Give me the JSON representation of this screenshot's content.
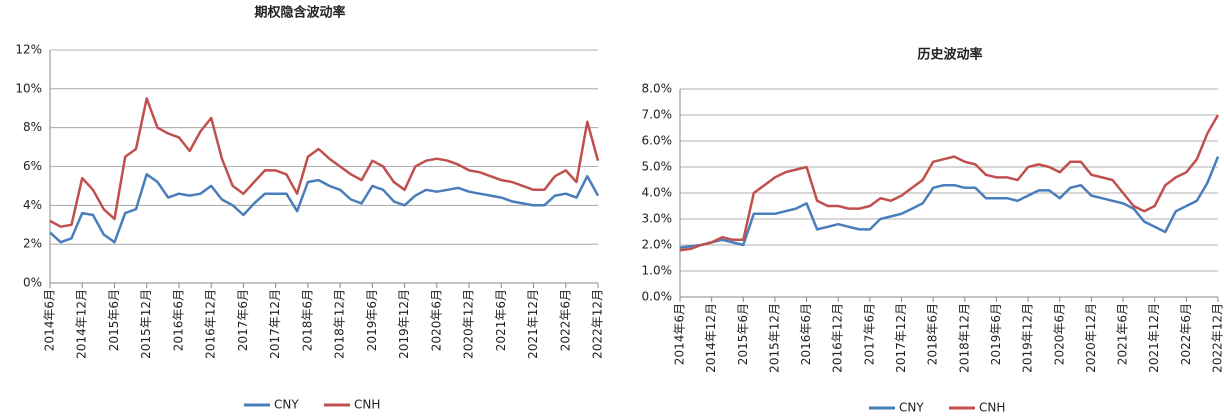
{
  "chart_data": [
    {
      "type": "line",
      "title": "期权隐含波动率",
      "categories": [
        "2014年6月",
        null,
        null,
        "2014年12月",
        null,
        null,
        "2015年6月",
        null,
        null,
        "2015年12月",
        null,
        null,
        "2016年6月",
        null,
        null,
        "2016年12月",
        null,
        null,
        "2017年6月",
        null,
        null,
        "2017年12月",
        null,
        null,
        "2018年6月",
        null,
        null,
        "2018年12月",
        null,
        null,
        "2019年6月",
        null,
        null,
        "2019年12月",
        null,
        null,
        "2020年6月",
        null,
        null,
        "2020年12月",
        null,
        null,
        "2021年6月",
        null,
        null,
        "2021年12月",
        null,
        null,
        "2022年6月",
        null,
        null,
        "2022年12月"
      ],
      "series": [
        {
          "name": "CNY",
          "color": "#4a7ebb",
          "values": [
            2.6,
            2.1,
            2.3,
            3.6,
            3.5,
            2.5,
            2.1,
            3.6,
            3.8,
            5.6,
            5.2,
            4.4,
            4.6,
            4.5,
            4.6,
            5.0,
            4.3,
            4.0,
            3.5,
            4.1,
            4.6,
            4.6,
            4.6,
            3.7,
            5.2,
            5.3,
            5.0,
            4.8,
            4.3,
            4.1,
            5.0,
            4.8,
            4.2,
            4.0,
            4.5,
            4.8,
            4.7,
            4.8,
            4.9,
            4.7,
            4.6,
            4.5,
            4.4,
            4.2,
            4.1,
            4.0,
            4.0,
            4.5,
            4.6,
            4.4,
            5.5,
            4.5
          ]
        },
        {
          "name": "CNH",
          "color": "#c0504d",
          "values": [
            3.2,
            2.9,
            3.0,
            5.4,
            4.8,
            3.8,
            3.3,
            6.5,
            6.9,
            9.5,
            8.0,
            7.7,
            7.5,
            6.8,
            7.8,
            8.5,
            6.4,
            5.0,
            4.6,
            5.2,
            5.8,
            5.8,
            5.6,
            4.6,
            6.5,
            6.9,
            6.4,
            6.0,
            5.6,
            5.3,
            6.3,
            6.0,
            5.2,
            4.8,
            6.0,
            6.3,
            6.4,
            6.3,
            6.1,
            5.8,
            5.7,
            5.5,
            5.3,
            5.2,
            5.0,
            4.8,
            4.8,
            5.5,
            5.8,
            5.2,
            8.3,
            6.3
          ]
        }
      ],
      "ylim": [
        0,
        12
      ],
      "yticks": [
        {
          "value": 0,
          "label": "0%"
        },
        {
          "value": 2,
          "label": "2%"
        },
        {
          "value": 4,
          "label": "4%"
        },
        {
          "value": 6,
          "label": "6%"
        },
        {
          "value": 8,
          "label": "8%"
        },
        {
          "value": 10,
          "label": "10%"
        },
        {
          "value": 12,
          "label": "12%"
        }
      ],
      "grid": true,
      "legend": "bottom"
    },
    {
      "type": "line",
      "title": "历史波动率",
      "categories": [
        "2014年6月",
        null,
        null,
        "2014年12月",
        null,
        null,
        "2015年6月",
        null,
        null,
        "2015年12月",
        null,
        null,
        "2016年6月",
        null,
        null,
        "2016年12月",
        null,
        null,
        "2017年6月",
        null,
        null,
        "2017年12月",
        null,
        null,
        "2018年6月",
        null,
        null,
        "2018年12月",
        null,
        null,
        "2019年6月",
        null,
        null,
        "2019年12月",
        null,
        null,
        "2020年6月",
        null,
        null,
        "2020年12月",
        null,
        null,
        "2021年6月",
        null,
        null,
        "2021年12月",
        null,
        null,
        "2022年6月",
        null,
        null,
        "2022年12月"
      ],
      "series": [
        {
          "name": "CNY",
          "color": "#4a7ebb",
          "values": [
            1.9,
            1.95,
            2.0,
            2.1,
            2.2,
            2.1,
            2.0,
            3.2,
            3.2,
            3.2,
            3.3,
            3.4,
            3.6,
            2.6,
            2.7,
            2.8,
            2.7,
            2.6,
            2.6,
            3.0,
            3.1,
            3.2,
            3.4,
            3.6,
            4.2,
            4.3,
            4.3,
            4.2,
            4.2,
            3.8,
            3.8,
            3.8,
            3.7,
            3.9,
            4.1,
            4.1,
            3.8,
            4.2,
            4.3,
            3.9,
            3.8,
            3.7,
            3.6,
            3.4,
            2.9,
            2.7,
            2.5,
            3.3,
            3.5,
            3.7,
            4.4,
            5.4
          ]
        },
        {
          "name": "CNH",
          "color": "#c0504d",
          "values": [
            1.8,
            1.85,
            2.0,
            2.1,
            2.3,
            2.2,
            2.2,
            4.0,
            4.3,
            4.6,
            4.8,
            4.9,
            5.0,
            3.7,
            3.5,
            3.5,
            3.4,
            3.4,
            3.5,
            3.8,
            3.7,
            3.9,
            4.2,
            4.5,
            5.2,
            5.3,
            5.4,
            5.2,
            5.1,
            4.7,
            4.6,
            4.6,
            4.5,
            5.0,
            5.1,
            5.0,
            4.8,
            5.2,
            5.2,
            4.7,
            4.6,
            4.5,
            4.0,
            3.5,
            3.3,
            3.5,
            4.3,
            4.6,
            4.8,
            5.3,
            6.3,
            7.0
          ]
        }
      ],
      "ylim": [
        0,
        8
      ],
      "yticks": [
        {
          "value": 0,
          "label": "0.0%"
        },
        {
          "value": 1,
          "label": "1.0%"
        },
        {
          "value": 2,
          "label": "2.0%"
        },
        {
          "value": 3,
          "label": "3.0%"
        },
        {
          "value": 4,
          "label": "4.0%"
        },
        {
          "value": 5,
          "label": "5.0%"
        },
        {
          "value": 6,
          "label": "6.0%"
        },
        {
          "value": 7,
          "label": "7.0%"
        },
        {
          "value": 8,
          "label": "8.0%"
        }
      ],
      "grid": true,
      "legend": "bottom"
    }
  ]
}
